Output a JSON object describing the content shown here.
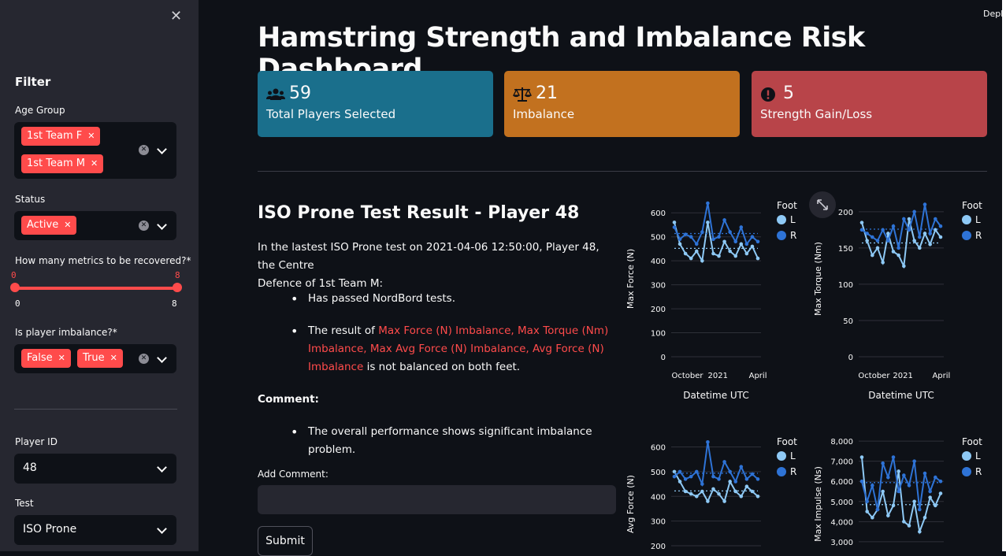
{
  "sidebar": {
    "close_glyph": "✕",
    "title": "Filter",
    "age_group": {
      "label": "Age Group",
      "tags": [
        "1st Team F",
        "1st Team M"
      ]
    },
    "status": {
      "label": "Status",
      "tags": [
        "Active"
      ]
    },
    "metrics": {
      "label": "How many metrics to be recovered?*",
      "value_low": "0",
      "value_high": "8",
      "min": "0",
      "max": "8"
    },
    "imbalance": {
      "label": "Is player imbalance?*",
      "tags": [
        "False",
        "True"
      ]
    },
    "player_id": {
      "label": "Player ID",
      "value": "48"
    },
    "test": {
      "label": "Test",
      "value": "ISO Prone"
    }
  },
  "deploy_label": "Deplo",
  "header": {
    "title": "Hamstring Strength and Imbalance Risk Dashboard"
  },
  "kpis": [
    {
      "icon": "users-icon",
      "value": "59",
      "label": "Total Players Selected",
      "color": "#1a6f8c"
    },
    {
      "icon": "balance-scale-icon",
      "value": "21",
      "label": "Imbalance",
      "color": "#c2711f"
    },
    {
      "icon": "exclamation-circle-icon",
      "value": "5",
      "label": "Strength Gain/Loss",
      "color": "#b84449"
    }
  ],
  "result": {
    "heading": "ISO Prone Test Result - Player 48",
    "intro_line1": "In the lastest ISO Prone test on 2021-04-06 12:50:00, Player 48, the Centre",
    "intro_line2": "Defence of 1st Team M:",
    "bullet1": "Has passed NordBord tests.",
    "bullet2_prefix": "The result of ",
    "bullet2_red_line1": "Max Force (N) Imbalance, Max Torque (Nm)",
    "bullet2_red_line2": "Imbalance, Max Avg Force (N) Imbalance, Avg Force (N)",
    "bullet2_red_line3": "Imbalance",
    "bullet2_suffix": " is not balanced on both feet.",
    "comment_heading": "Comment:",
    "comment_bullet": "The overall performance shows significant imbalance problem.",
    "add_comment_label": "Add Comment:",
    "submit_label": "Submit"
  },
  "chart_data": [
    {
      "type": "line",
      "ylabel": "Max Force (N)",
      "xlabel": "Datetime UTC",
      "x_ticks": [
        "October",
        "2021",
        "April"
      ],
      "y_ticks": [
        0,
        100,
        200,
        300,
        400,
        500,
        600
      ],
      "ylim": [
        0,
        650
      ],
      "legend_title": "Foot",
      "series": [
        {
          "name": "L",
          "color": "#8ec9f5",
          "values": [
            560,
            470,
            430,
            410,
            440,
            400,
            560,
            430,
            420,
            480,
            440,
            420,
            470,
            430,
            460,
            410
          ]
        },
        {
          "name": "R",
          "color": "#2e73d6",
          "values": [
            540,
            490,
            510,
            500,
            470,
            520,
            640,
            490,
            500,
            570,
            520,
            480,
            540,
            470,
            500,
            480
          ]
        }
      ]
    },
    {
      "type": "line",
      "ylabel": "Max Torque (Nm)",
      "xlabel": "Datetime UTC",
      "x_ticks": [
        "October",
        "2021",
        "April"
      ],
      "y_ticks": [
        0,
        50,
        100,
        150,
        200
      ],
      "ylim": [
        0,
        215
      ],
      "legend_title": "Foot",
      "series": [
        {
          "name": "L",
          "color": "#8ec9f5",
          "values": [
            185,
            160,
            140,
            150,
            130,
            170,
            145,
            140,
            125,
            190,
            160,
            150,
            170,
            155,
            175,
            165
          ]
        },
        {
          "name": "R",
          "color": "#2e73d6",
          "values": [
            175,
            170,
            165,
            160,
            175,
            160,
            180,
            150,
            190,
            175,
            200,
            165,
            210,
            170,
            190,
            180
          ]
        }
      ]
    },
    {
      "type": "line",
      "ylabel": "Avg Force (N)",
      "xlabel": "",
      "x_ticks": [],
      "y_ticks": [
        200,
        300,
        400,
        500,
        600
      ],
      "ylim": [
        200,
        640
      ],
      "legend_title": "Foot",
      "series": [
        {
          "name": "L",
          "color": "#8ec9f5",
          "values": [
            500,
            460,
            420,
            410,
            400,
            420,
            380,
            430,
            410,
            380,
            460,
            420,
            400,
            440,
            420,
            400
          ]
        },
        {
          "name": "R",
          "color": "#2e73d6",
          "values": [
            480,
            500,
            470,
            480,
            500,
            450,
            620,
            480,
            470,
            540,
            500,
            460,
            520,
            470,
            490,
            470
          ]
        }
      ]
    },
    {
      "type": "line",
      "ylabel": "Max Impulse (Ns)",
      "xlabel": "",
      "x_ticks": [],
      "y_ticks": [
        "3,000",
        "4,000",
        "5,000",
        "6,000",
        "7,000",
        "8,000"
      ],
      "ylim": [
        2800,
        8200
      ],
      "legend_title": "Foot",
      "series": [
        {
          "name": "L",
          "color": "#8ec9f5",
          "values": [
            7200,
            4500,
            4200,
            4600,
            5500,
            4300,
            4800,
            6500,
            4000,
            3800,
            5000,
            3500,
            4200,
            5200,
            4800,
            5400
          ]
        },
        {
          "name": "R",
          "color": "#2e73d6",
          "values": [
            6000,
            5000,
            5800,
            4600,
            6900,
            6200,
            7200,
            5500,
            6300,
            5800,
            7000,
            4600,
            6400,
            5500,
            6200,
            6000
          ]
        }
      ]
    }
  ]
}
